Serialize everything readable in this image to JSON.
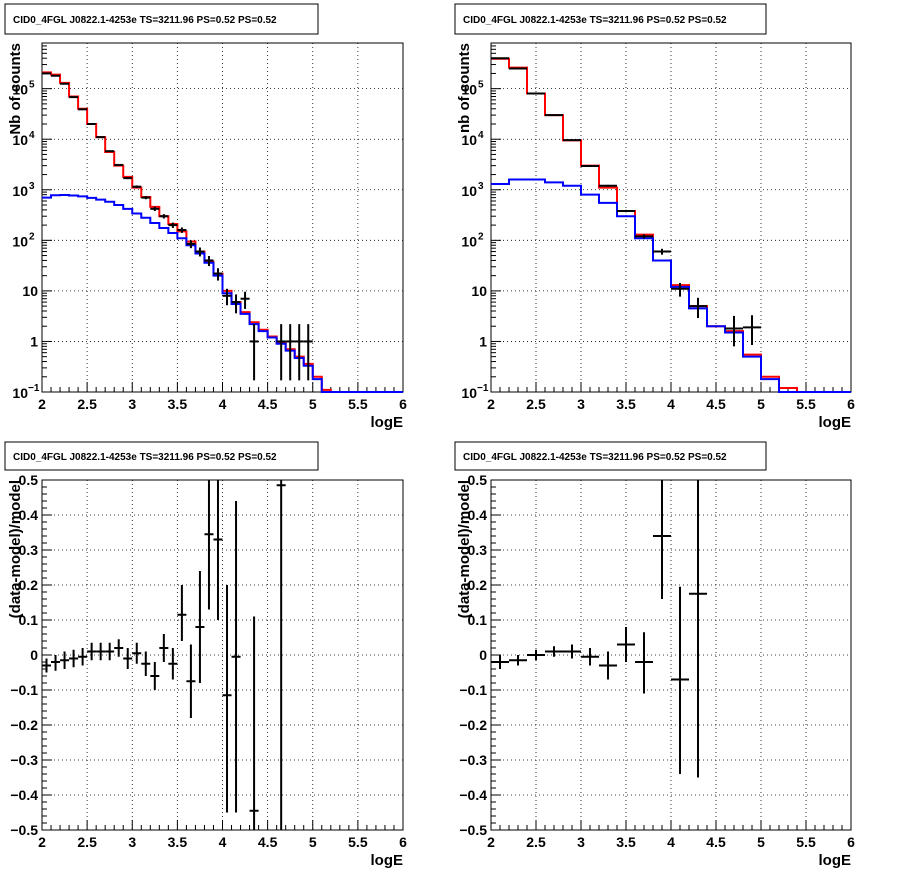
{
  "chart_data": [
    {
      "type": "line",
      "title": "CID0_4FGL J0822.1-4253e TS=3211.96 PS=0.52 PS=0.52",
      "xlabel": "logE",
      "ylabel": "Nb of counts",
      "xlim": [
        2,
        6
      ],
      "ylim": [
        0.1,
        800000
      ],
      "yscale": "log",
      "grid": true,
      "x_ticks": [
        "2",
        "2.5",
        "3",
        "3.5",
        "4",
        "4.5",
        "5",
        "5.5",
        "6"
      ],
      "y_ticks": [
        {
          "value": 0.1,
          "base": "10",
          "exp": "−1"
        },
        {
          "value": 1,
          "label": "1"
        },
        {
          "value": 10,
          "label": "10"
        },
        {
          "value": 100,
          "base": "10",
          "exp": "2"
        },
        {
          "value": 1000,
          "base": "10",
          "exp": "3"
        },
        {
          "value": 10000,
          "base": "10",
          "exp": "4"
        },
        {
          "value": 100000,
          "base": "10",
          "exp": "5"
        }
      ],
      "bin_edges": [
        2.0,
        2.1,
        2.2,
        2.3,
        2.4,
        2.5,
        2.6,
        2.7,
        2.8,
        2.9,
        3.0,
        3.1,
        3.2,
        3.3,
        3.4,
        3.5,
        3.6,
        3.7,
        3.8,
        3.9,
        4.0,
        4.1,
        4.2,
        4.3,
        4.4,
        4.5,
        4.6,
        4.7,
        4.8,
        4.9,
        5.0,
        5.1,
        5.2,
        5.3,
        5.4,
        5.5,
        5.6,
        5.7,
        5.8,
        5.9,
        6.0
      ],
      "series": [
        {
          "color": "#ff0000",
          "style": "step",
          "values": [
            210000,
            190000,
            130000,
            70000,
            40000,
            20000,
            11000,
            5600,
            3000,
            1800,
            1100,
            720,
            460,
            300,
            210,
            150,
            95,
            60,
            38,
            22,
            10,
            6,
            3.8,
            2.4,
            1.7,
            1.25,
            0.95,
            0.7,
            0.5,
            0.36,
            0.2,
            0.11,
            0.1,
            0.1,
            0.1,
            0.1,
            0.1,
            0.1,
            0.1,
            0.1
          ]
        },
        {
          "color": "#0000ff",
          "style": "step",
          "values": [
            700,
            780,
            790,
            770,
            740,
            690,
            640,
            580,
            500,
            420,
            340,
            280,
            220,
            175,
            140,
            110,
            80,
            55,
            36,
            20,
            9,
            5.5,
            3.5,
            2.2,
            1.6,
            1.2,
            0.9,
            0.66,
            0.47,
            0.33,
            0.18,
            0.1,
            0.1,
            0.1,
            0.1,
            0.1,
            0.1,
            0.1,
            0.1,
            0.1
          ]
        }
      ],
      "points": {
        "color": "#000000",
        "x": [
          2.05,
          2.15,
          2.25,
          2.35,
          2.45,
          2.55,
          2.65,
          2.75,
          2.85,
          2.95,
          3.05,
          3.15,
          3.25,
          3.35,
          3.45,
          3.55,
          3.65,
          3.75,
          3.85,
          3.95,
          4.05,
          4.15,
          4.25,
          4.35,
          4.65,
          4.75,
          4.85,
          4.95
        ],
        "y": [
          200000,
          180000,
          125000,
          68000,
          39000,
          20000,
          11000,
          5800,
          3100,
          1700,
          1150,
          700,
          420,
          300,
          200,
          160,
          85,
          60,
          40,
          22,
          8,
          6,
          7,
          1,
          1,
          1,
          1,
          1
        ],
        "xerr": 0.05,
        "ylow": [
          199000,
          179000,
          124000,
          67500,
          38600,
          19700,
          10800,
          5650,
          3000,
          1620,
          1080,
          650,
          380,
          270,
          176,
          140,
          70,
          48,
          31,
          16,
          5.2,
          3.6,
          4.4,
          0.17,
          0.17,
          0.17,
          0.17,
          0.17
        ],
        "yhigh": [
          201000,
          181000,
          126000,
          68500,
          39400,
          20300,
          11200,
          5950,
          3200,
          1780,
          1220,
          750,
          460,
          330,
          224,
          180,
          100,
          72,
          49,
          28,
          11,
          8.5,
          9.6,
          2.2,
          2.2,
          2.2,
          2.2,
          2.2
        ]
      }
    },
    {
      "type": "line",
      "title": "CID0_4FGL J0822.1-4253e TS=3211.96 PS=0.52 PS=0.52",
      "xlabel": "logE",
      "ylabel": "nb of counts",
      "xlim": [
        2,
        6
      ],
      "ylim": [
        0.1,
        800000
      ],
      "yscale": "log",
      "grid": true,
      "x_ticks": [
        "2",
        "2.5",
        "3",
        "3.5",
        "4",
        "4.5",
        "5",
        "5.5",
        "6"
      ],
      "y_ticks": [
        {
          "value": 0.1,
          "base": "10",
          "exp": "−1"
        },
        {
          "value": 1,
          "label": "1"
        },
        {
          "value": 10,
          "label": "10"
        },
        {
          "value": 100,
          "base": "10",
          "exp": "2"
        },
        {
          "value": 1000,
          "base": "10",
          "exp": "3"
        },
        {
          "value": 10000,
          "base": "10",
          "exp": "4"
        },
        {
          "value": 100000,
          "base": "10",
          "exp": "5"
        }
      ],
      "bin_edges": [
        2.0,
        2.2,
        2.4,
        2.6,
        2.8,
        3.0,
        3.2,
        3.4,
        3.6,
        3.8,
        4.0,
        4.2,
        4.4,
        4.6,
        4.8,
        5.0,
        5.2,
        5.4,
        5.6,
        5.8,
        6.0
      ],
      "series": [
        {
          "color": "#ff0000",
          "style": "step",
          "values": [
            390000,
            260000,
            80000,
            30000,
            9500,
            3000,
            1100,
            380,
            130,
            40,
            13,
            5,
            2,
            1.6,
            0.55,
            0.2,
            0.12,
            0.1,
            0.1,
            0.1
          ]
        },
        {
          "color": "#0000ff",
          "style": "step",
          "values": [
            1300,
            1600,
            1600,
            1400,
            1200,
            800,
            550,
            300,
            110,
            40,
            12,
            4.5,
            2,
            1.5,
            0.5,
            0.18,
            0.1,
            0.1,
            0.1,
            0.1
          ]
        }
      ],
      "points": {
        "color": "#000000",
        "x": [
          2.1,
          2.3,
          2.5,
          2.7,
          2.9,
          3.1,
          3.3,
          3.5,
          3.7,
          3.9,
          4.1,
          4.3,
          4.7,
          4.9
        ],
        "y": [
          400000,
          250000,
          80000,
          30000,
          9600,
          2950,
          1200,
          380,
          120,
          60,
          11,
          5,
          1.8,
          1.9
        ],
        "xerr": 0.1,
        "ylow": [
          399000,
          249000,
          79700,
          29800,
          9500,
          2890,
          1150,
          360,
          109,
          52,
          7.7,
          2.9,
          0.8,
          0.85
        ],
        "yhigh": [
          401000,
          251000,
          80300,
          30200,
          9700,
          3010,
          1250,
          400,
          131,
          68,
          14.3,
          7.3,
          3.2,
          3.3
        ]
      }
    },
    {
      "type": "scatter",
      "title": "CID0_4FGL J0822.1-4253e TS=3211.96 PS=0.52 PS=0.52",
      "xlabel": "logE",
      "ylabel": "(data-model)/model",
      "xlim": [
        2,
        6
      ],
      "ylim": [
        -0.5,
        0.5
      ],
      "yscale": "linear",
      "grid": true,
      "x_ticks": [
        "2",
        "2.5",
        "3",
        "3.5",
        "4",
        "4.5",
        "5",
        "5.5",
        "6"
      ],
      "y_ticks": [
        {
          "value": -0.5,
          "label": "−0.5"
        },
        {
          "value": -0.4,
          "label": "−0.4"
        },
        {
          "value": -0.3,
          "label": "−0.3"
        },
        {
          "value": -0.2,
          "label": "−0.2"
        },
        {
          "value": -0.1,
          "label": "−0.1"
        },
        {
          "value": 0,
          "label": "0"
        },
        {
          "value": 0.1,
          "label": "0.1"
        },
        {
          "value": 0.2,
          "label": "0.2"
        },
        {
          "value": 0.3,
          "label": "0.3"
        },
        {
          "value": 0.4,
          "label": "0.4"
        },
        {
          "value": 0.5,
          "label": "0.5"
        }
      ],
      "points": {
        "color": "#000000",
        "x": [
          2.05,
          2.15,
          2.25,
          2.35,
          2.45,
          2.55,
          2.65,
          2.75,
          2.85,
          2.95,
          3.05,
          3.15,
          3.25,
          3.35,
          3.45,
          3.55,
          3.65,
          3.75,
          3.85,
          3.95,
          4.05,
          4.15,
          4.35,
          4.65
        ],
        "y": [
          -0.03,
          -0.02,
          -0.015,
          -0.01,
          -0.005,
          0.01,
          0.01,
          0.01,
          0.02,
          -0.01,
          0.005,
          -0.025,
          -0.06,
          0.02,
          -0.025,
          0.115,
          -0.075,
          0.08,
          0.345,
          0.33,
          -0.115,
          -0.005,
          -0.445,
          0.485
        ],
        "xerr": 0.05,
        "ylow": [
          -0.05,
          -0.045,
          -0.04,
          -0.035,
          -0.03,
          -0.015,
          -0.015,
          -0.015,
          -0.005,
          -0.04,
          -0.025,
          -0.06,
          -0.1,
          -0.02,
          -0.07,
          0.04,
          -0.18,
          -0.08,
          0.13,
          0.1,
          -0.45,
          -0.45,
          -0.5,
          -0.5
        ],
        "yhigh": [
          -0.01,
          0.0,
          0.01,
          0.015,
          0.02,
          0.035,
          0.035,
          0.035,
          0.045,
          0.02,
          0.035,
          0.01,
          -0.02,
          0.06,
          0.02,
          0.2,
          0.03,
          0.24,
          0.5,
          0.5,
          0.2,
          0.44,
          0.11,
          0.5
        ]
      }
    },
    {
      "type": "scatter",
      "title": "CID0_4FGL J0822.1-4253e TS=3211.96 PS=0.52 PS=0.52",
      "xlabel": "logE",
      "ylabel": "(data-model)/model",
      "xlim": [
        2,
        6
      ],
      "ylim": [
        -0.5,
        0.5
      ],
      "yscale": "linear",
      "grid": true,
      "x_ticks": [
        "2",
        "2.5",
        "3",
        "3.5",
        "4",
        "4.5",
        "5",
        "5.5",
        "6"
      ],
      "y_ticks": [
        {
          "value": -0.5,
          "label": "−0.5"
        },
        {
          "value": -0.4,
          "label": "−0.4"
        },
        {
          "value": -0.3,
          "label": "−0.3"
        },
        {
          "value": -0.2,
          "label": "−0.2"
        },
        {
          "value": -0.1,
          "label": "−0.1"
        },
        {
          "value": 0,
          "label": "0"
        },
        {
          "value": 0.1,
          "label": "0.1"
        },
        {
          "value": 0.2,
          "label": "0.2"
        },
        {
          "value": 0.3,
          "label": "0.3"
        },
        {
          "value": 0.4,
          "label": "0.4"
        },
        {
          "value": 0.5,
          "label": "0.5"
        }
      ],
      "points": {
        "color": "#000000",
        "x": [
          2.1,
          2.3,
          2.5,
          2.7,
          2.9,
          3.1,
          3.3,
          3.5,
          3.7,
          3.9,
          4.1,
          4.3
        ],
        "y": [
          -0.02,
          -0.015,
          0.0,
          0.01,
          0.01,
          -0.005,
          -0.03,
          0.03,
          -0.02,
          0.34,
          -0.07,
          0.175
        ],
        "xerr": 0.1,
        "ylow": [
          -0.04,
          -0.03,
          -0.015,
          -0.005,
          -0.01,
          -0.03,
          -0.07,
          -0.02,
          -0.11,
          0.16,
          -0.34,
          -0.35
        ],
        "yhigh": [
          0.0,
          0.0,
          0.015,
          0.025,
          0.03,
          0.02,
          0.01,
          0.08,
          0.065,
          0.5,
          0.195,
          0.5
        ]
      }
    }
  ]
}
